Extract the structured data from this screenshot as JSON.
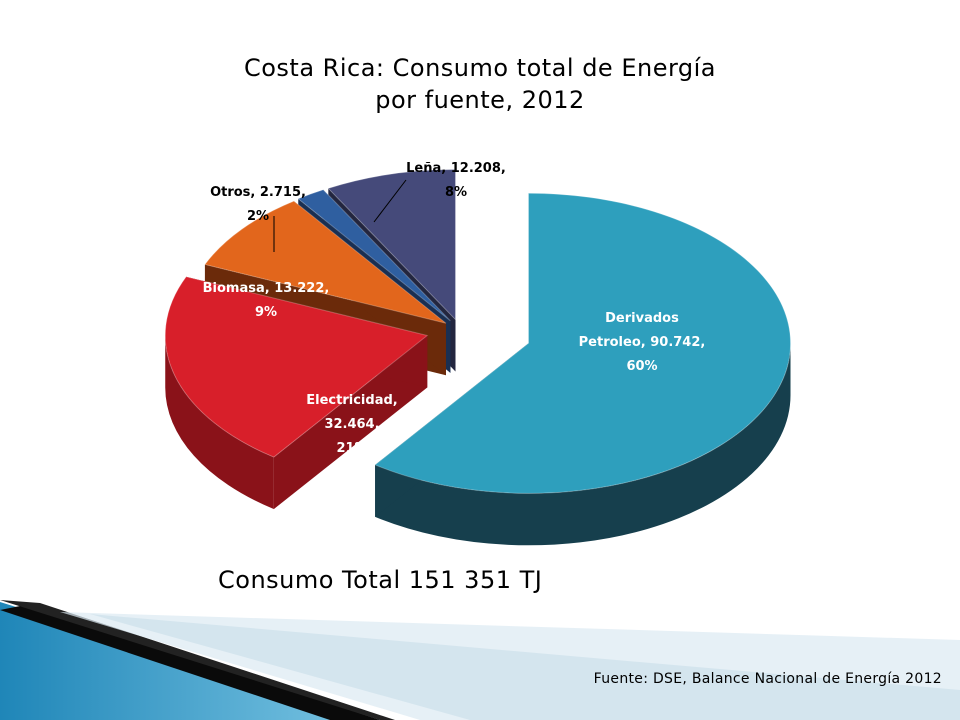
{
  "chart_data": {
    "type": "pie",
    "title": [
      "Costa Rica: Consumo total de Energía",
      "por fuente, 2012"
    ],
    "slices": [
      {
        "label": [
          "Derivados",
          "Petroleo, 90.742,",
          "60%"
        ],
        "value": 90.742,
        "percent": 60,
        "color": "#2e9fbd",
        "side_color": "#163f4d",
        "label_color": "#ffffff"
      },
      {
        "label": [
          "Electricidad,",
          "32.464,",
          "21%"
        ],
        "value": 32.464,
        "percent": 21,
        "color": "#d81f2a",
        "side_color": "#8a1219",
        "label_color": "#ffffff"
      },
      {
        "label": [
          "Biomasa, 13.222,",
          "9%"
        ],
        "value": 13.222,
        "percent": 9,
        "color": "#e2661c",
        "side_color": "#6b2a0a",
        "label_color": "#ffffff"
      },
      {
        "label": [
          "Otros, 2.715,",
          "2%"
        ],
        "value": 2.715,
        "percent": 2,
        "color": "#2f5fa0",
        "side_color": "#1a2f52",
        "label_color": "#000000"
      },
      {
        "label": [
          "Leña, 12.208,",
          "8%"
        ],
        "value": 12.208,
        "percent": 8,
        "color": "#454a7a",
        "side_color": "#23263f",
        "label_color": "#000000"
      }
    ],
    "total_note": "Consumo Total 151 351 TJ",
    "source": "Fuente: DSE, Balance Nacional de Energía 2012"
  }
}
